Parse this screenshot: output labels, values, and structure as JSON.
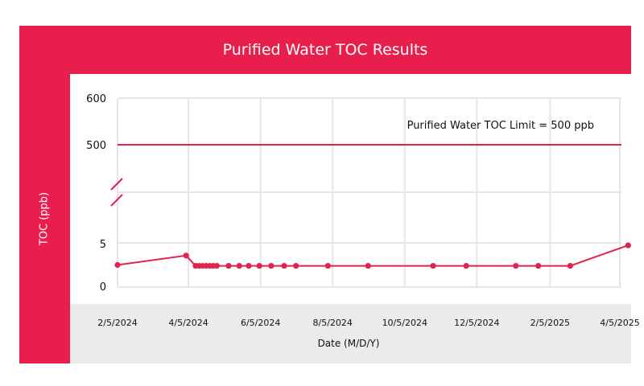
{
  "chart_data": {
    "type": "line",
    "title": "Purified Water TOC Results",
    "xlabel": "Date (M/D/Y)",
    "ylabel": "TOC (ppb)",
    "x_tick_labels": [
      "2/5/2024",
      "4/5/2024",
      "6/5/2024",
      "8/5/2024",
      "10/5/2024",
      "12/5/2024",
      "2/5/2025",
      "4/5/2025"
    ],
    "x_ticks": [
      "2024-02-05",
      "2024-04-05",
      "2024-06-05",
      "2024-08-05",
      "2024-10-05",
      "2024-12-05",
      "2025-02-05",
      "2025-04-05"
    ],
    "y_tick_labels": [
      "0",
      "5",
      "500",
      "600"
    ],
    "y_axis_break": true,
    "limit_line": {
      "label": "Purified Water TOC Limit = 500 ppb",
      "value": 500,
      "color": "#e81e4d"
    },
    "series": [
      {
        "color": "#e0234e",
        "points": [
          {
            "x": "2024-02-05",
            "y": 2.5
          },
          {
            "x": "2024-04-03",
            "y": 3.6
          },
          {
            "x": "2024-04-11",
            "y": 2.4
          },
          {
            "x": "2024-04-14",
            "y": 2.4
          },
          {
            "x": "2024-04-17",
            "y": 2.4
          },
          {
            "x": "2024-04-20",
            "y": 2.4
          },
          {
            "x": "2024-04-23",
            "y": 2.4
          },
          {
            "x": "2024-04-26",
            "y": 2.4
          },
          {
            "x": "2024-04-29",
            "y": 2.4
          },
          {
            "x": "2024-05-09",
            "y": 2.4
          },
          {
            "x": "2024-05-18",
            "y": 2.4
          },
          {
            "x": "2024-05-26",
            "y": 2.4
          },
          {
            "x": "2024-06-04",
            "y": 2.4
          },
          {
            "x": "2024-06-14",
            "y": 2.4
          },
          {
            "x": "2024-06-25",
            "y": 2.4
          },
          {
            "x": "2024-07-05",
            "y": 2.4
          },
          {
            "x": "2024-08-01",
            "y": 2.4
          },
          {
            "x": "2024-09-04",
            "y": 2.4
          },
          {
            "x": "2024-10-29",
            "y": 2.4
          },
          {
            "x": "2024-11-26",
            "y": 2.4
          },
          {
            "x": "2025-01-07",
            "y": 2.4
          },
          {
            "x": "2025-01-26",
            "y": 2.4
          },
          {
            "x": "2025-02-22",
            "y": 2.4
          },
          {
            "x": "2025-04-12",
            "y": 4.8
          }
        ]
      }
    ],
    "colors": {
      "brand": "#e81e4d",
      "grid": "#e6e6e6",
      "axis_band": "#ebebeb"
    }
  }
}
